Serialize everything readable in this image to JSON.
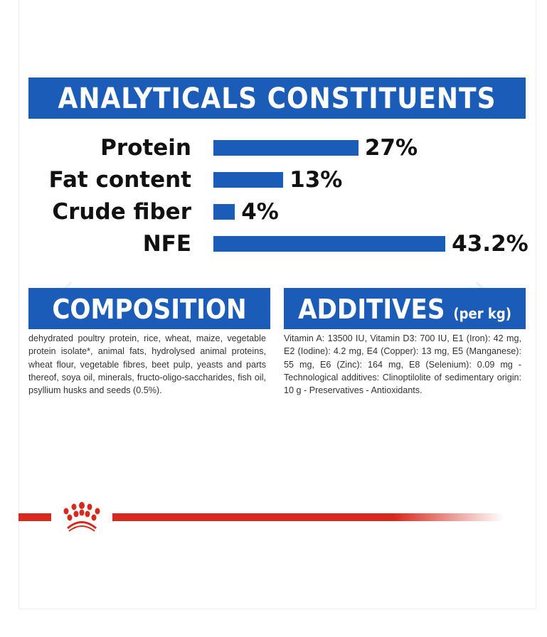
{
  "analyticals": {
    "title": "ANALYTICALS CONSTITUENTS",
    "items": [
      {
        "label": "Protein",
        "value": "27%",
        "percent": 27
      },
      {
        "label": "Fat content",
        "value": "13%",
        "percent": 13
      },
      {
        "label": "Crude fiber",
        "value": "4%",
        "percent": 4
      },
      {
        "label": "NFE",
        "value": "43.2%",
        "percent": 43.2
      }
    ]
  },
  "composition": {
    "title": "COMPOSITION",
    "text": "dehydrated poultry protein, rice, wheat, maize, vegetable protein isolate*, animal fats, hydrolysed animal proteins, wheat flour, vegetable fibres, beet pulp, yeasts and parts thereof, soya oil, minerals, fructo-oligo-saccharides, fish oil, psyllium husks and seeds (0.5%)."
  },
  "additives": {
    "title": "ADDITIVES",
    "subtitle": "(per kg)",
    "text": "Vitamin A: 13500 IU, Vitamin D3: 700 IU, E1 (Iron): 42 mg, E2 (Iodine): 4.2 mg, E4 (Copper): 13 mg, E5 (Manganese): 55 mg, E6 (Zinc): 164 mg, E8 (Selenium): 0.09 mg -Technological additives: Clinoptilolite of sedimentary origin: 10 g - Preservatives - Antioxidants."
  },
  "colors": {
    "blue": "#1a5cb8",
    "red": "#d52b1e"
  }
}
